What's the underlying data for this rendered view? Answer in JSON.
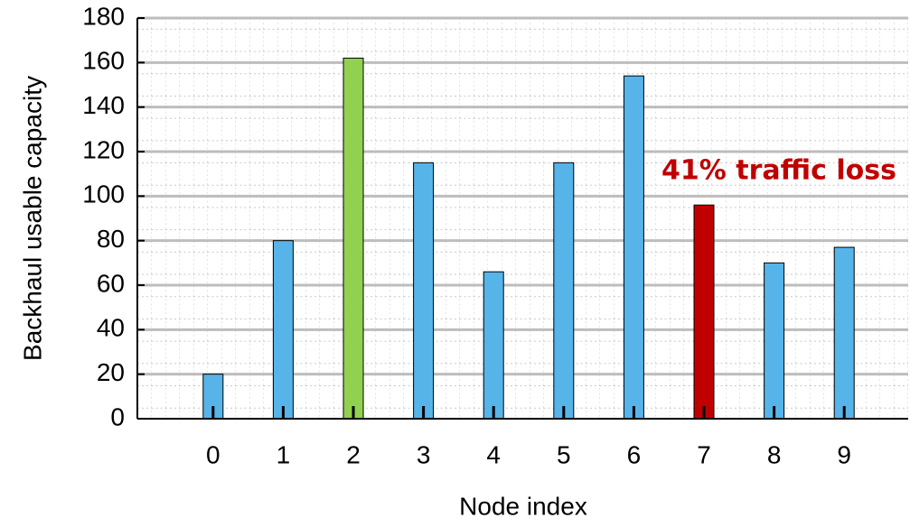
{
  "chart_data": {
    "type": "bar",
    "x_label": "Node index",
    "y_label": "Backhaul usable capacity",
    "categories": [
      "0",
      "1",
      "2",
      "3",
      "4",
      "5",
      "6",
      "7",
      "8",
      "9"
    ],
    "values": [
      20,
      80,
      162,
      115,
      66,
      115,
      154,
      96,
      70,
      77
    ],
    "colors": [
      "#56b4e9",
      "#56b4e9",
      "#92d050",
      "#56b4e9",
      "#56b4e9",
      "#56b4e9",
      "#56b4e9",
      "#c00000",
      "#56b4e9",
      "#56b4e9"
    ],
    "ylim": [
      0,
      180
    ],
    "yticks": [
      0,
      20,
      40,
      60,
      80,
      100,
      120,
      140,
      160,
      180
    ],
    "grid": true,
    "annotation": "41% traffic loss"
  }
}
